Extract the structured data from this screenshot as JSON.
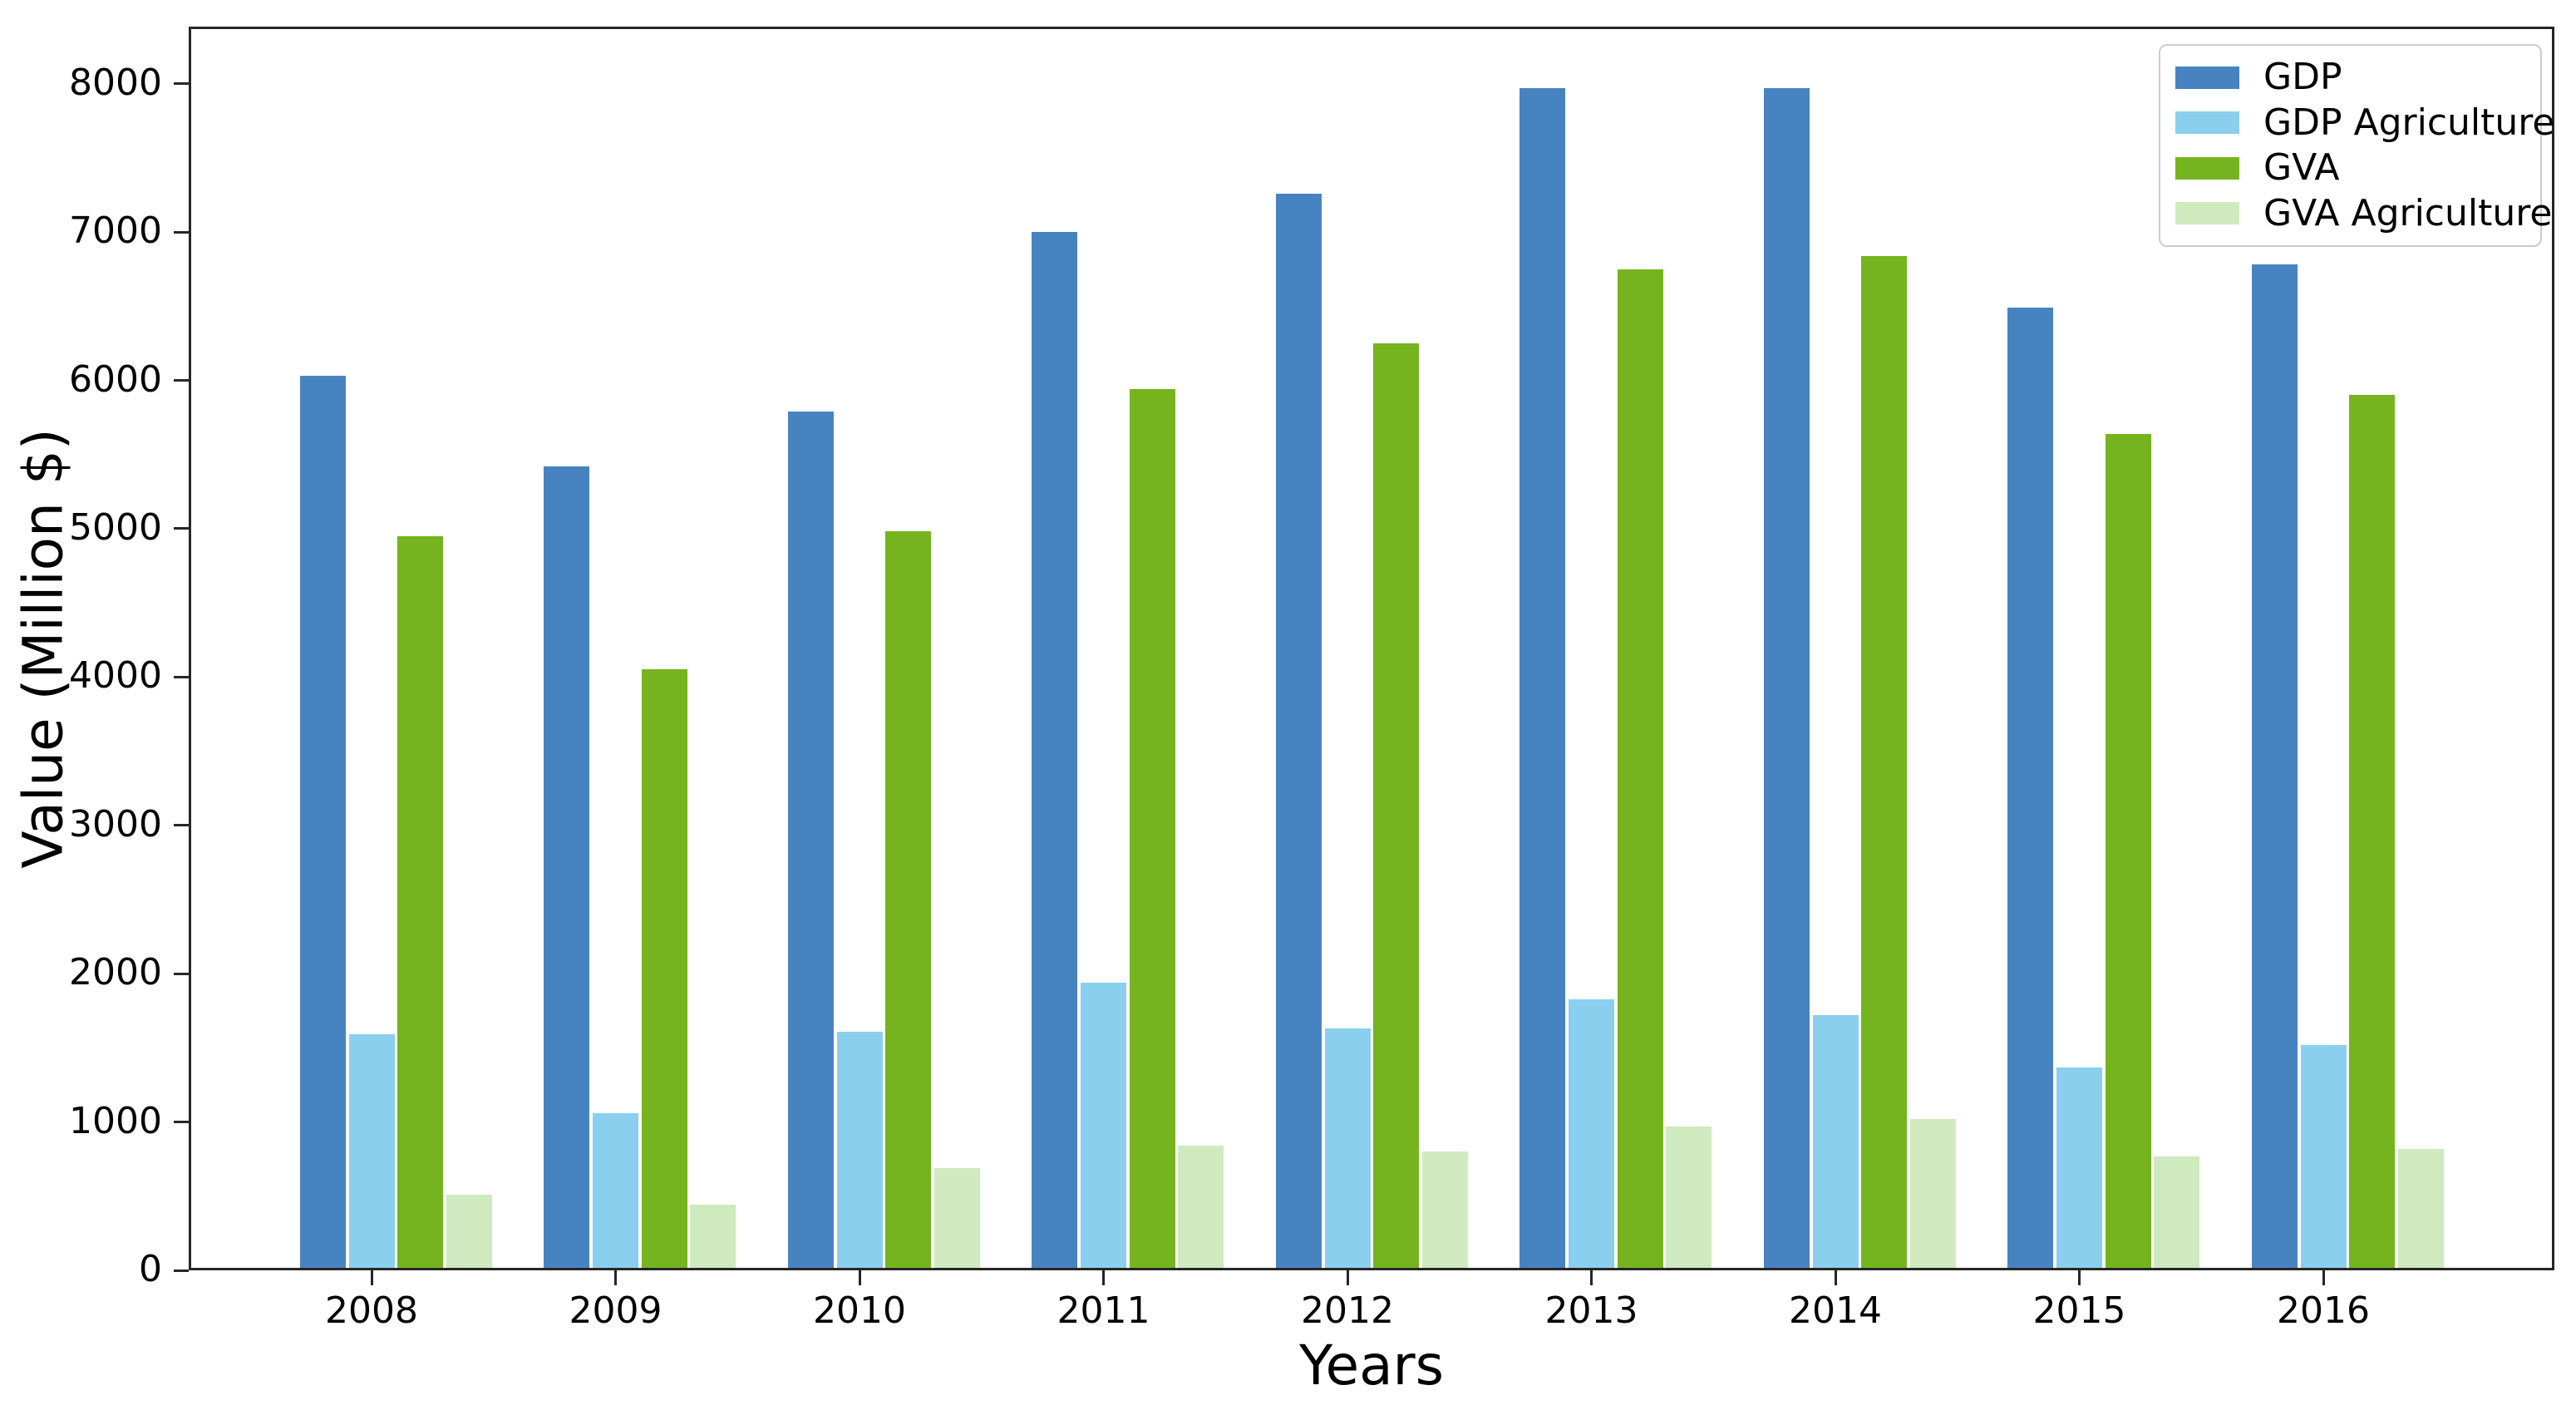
{
  "figure": {
    "background": "#ffffff",
    "spine_color": "#262626",
    "text_color": "#000000",
    "legend_border_color": "#cccccc"
  },
  "chart_data": {
    "type": "bar",
    "title": "",
    "xlabel": "Years",
    "ylabel": "Value (Million $)",
    "categories": [
      "2008",
      "2009",
      "2010",
      "2011",
      "2012",
      "2013",
      "2014",
      "2015",
      "2016"
    ],
    "series": [
      {
        "name": "GDP",
        "color": "#4883c1",
        "values": [
          6030,
          5420,
          5790,
          7000,
          7260,
          7970,
          7970,
          6490,
          6780
        ]
      },
      {
        "name": "GDP Agriculture",
        "color": "#8bcfee",
        "values": [
          1590,
          1060,
          1610,
          1940,
          1630,
          1830,
          1720,
          1370,
          1520
        ]
      },
      {
        "name": "GVA",
        "color": "#75b41e",
        "values": [
          4950,
          4050,
          4980,
          5940,
          6250,
          6750,
          6840,
          5640,
          5900
        ]
      },
      {
        "name": "GVA Agriculture",
        "color": "#cfeabf",
        "values": [
          510,
          440,
          690,
          840,
          800,
          970,
          1020,
          770,
          820
        ]
      }
    ],
    "ylim": [
      0,
      8385
    ],
    "yticks": [
      0,
      1000,
      2000,
      3000,
      4000,
      5000,
      6000,
      7000,
      8000
    ],
    "grid": false,
    "legend_position": "upper right"
  }
}
